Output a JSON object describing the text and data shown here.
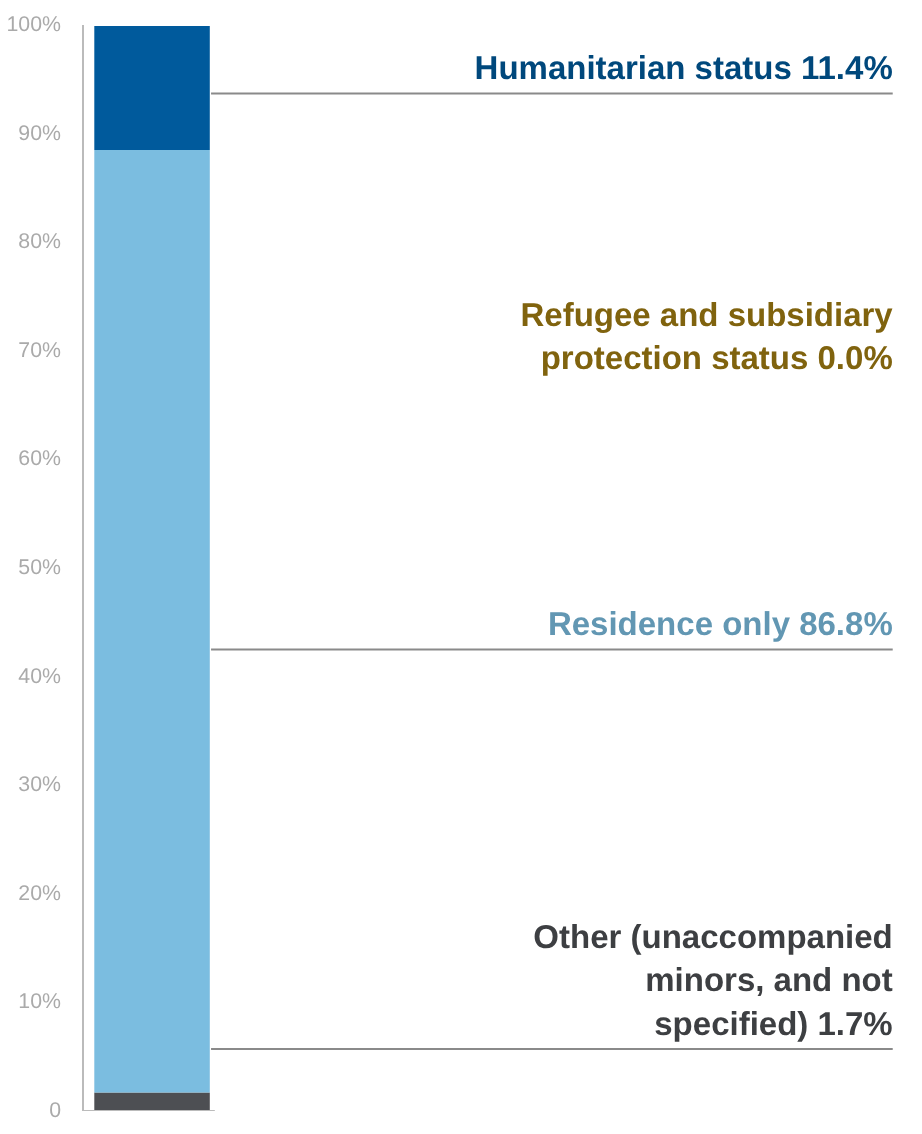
{
  "chart_data": {
    "type": "bar",
    "stacked": true,
    "categories": [
      null
    ],
    "ylim": [
      0,
      100
    ],
    "yticks": [
      {
        "value": 0,
        "label": "0"
      },
      {
        "value": 10,
        "label": "10%"
      },
      {
        "value": 20,
        "label": "20%"
      },
      {
        "value": 30,
        "label": "30%"
      },
      {
        "value": 40,
        "label": "40%"
      },
      {
        "value": 50,
        "label": "50%"
      },
      {
        "value": 60,
        "label": "60%"
      },
      {
        "value": 70,
        "label": "70%"
      },
      {
        "value": 80,
        "label": "80%"
      },
      {
        "value": 90,
        "label": "90%"
      },
      {
        "value": 100,
        "label": "100%"
      }
    ],
    "grid": false,
    "series": [
      {
        "name": "Other (unaccompanied minors, and not specified)",
        "color": "#4d4f53",
        "values": [
          1.7
        ],
        "value_labels": [
          "1.7%"
        ]
      },
      {
        "name": "Residence only",
        "color": "#7bbde0",
        "values": [
          86.8
        ],
        "value_labels": [
          "86.8%"
        ]
      },
      {
        "name": "Refugee and subsidiary protection status",
        "color": "#a07c12",
        "values": [
          0.0
        ],
        "value_labels": [
          "0.0%"
        ]
      },
      {
        "name": "Humanitarian status",
        "color": "#005a9c",
        "values": [
          11.4
        ],
        "value_labels": [
          "11.4%"
        ]
      }
    ]
  }
}
